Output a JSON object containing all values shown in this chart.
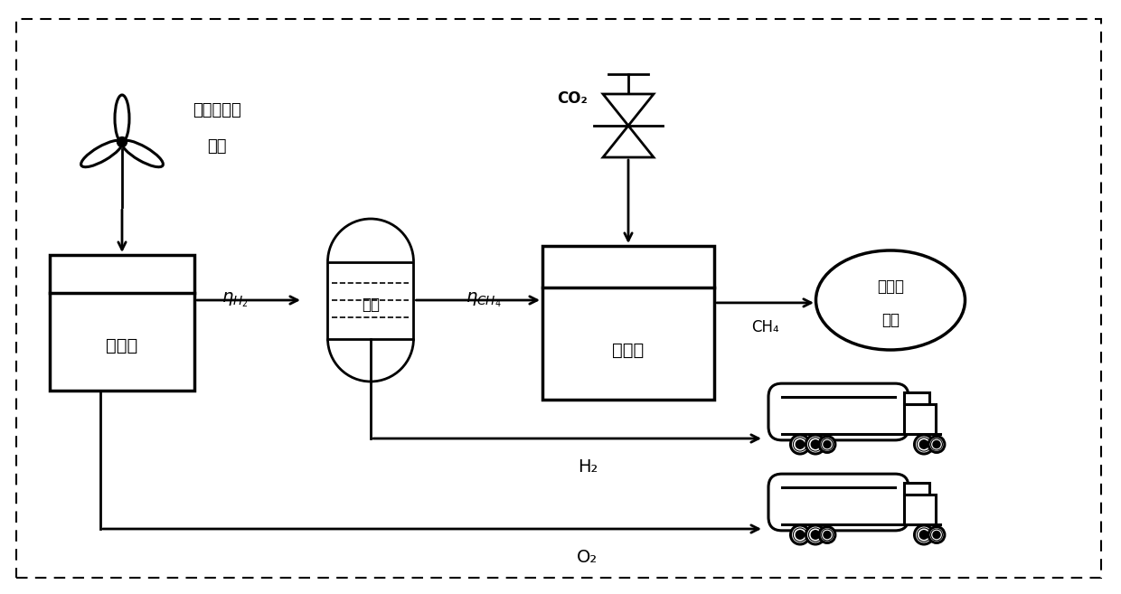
{
  "background_color": "#ffffff",
  "line_color": "#000000",
  "fig_width": 12.4,
  "fig_height": 6.57,
  "dpi": 100,
  "xlim": [
    0,
    12.4
  ],
  "ylim": [
    0,
    6.57
  ]
}
